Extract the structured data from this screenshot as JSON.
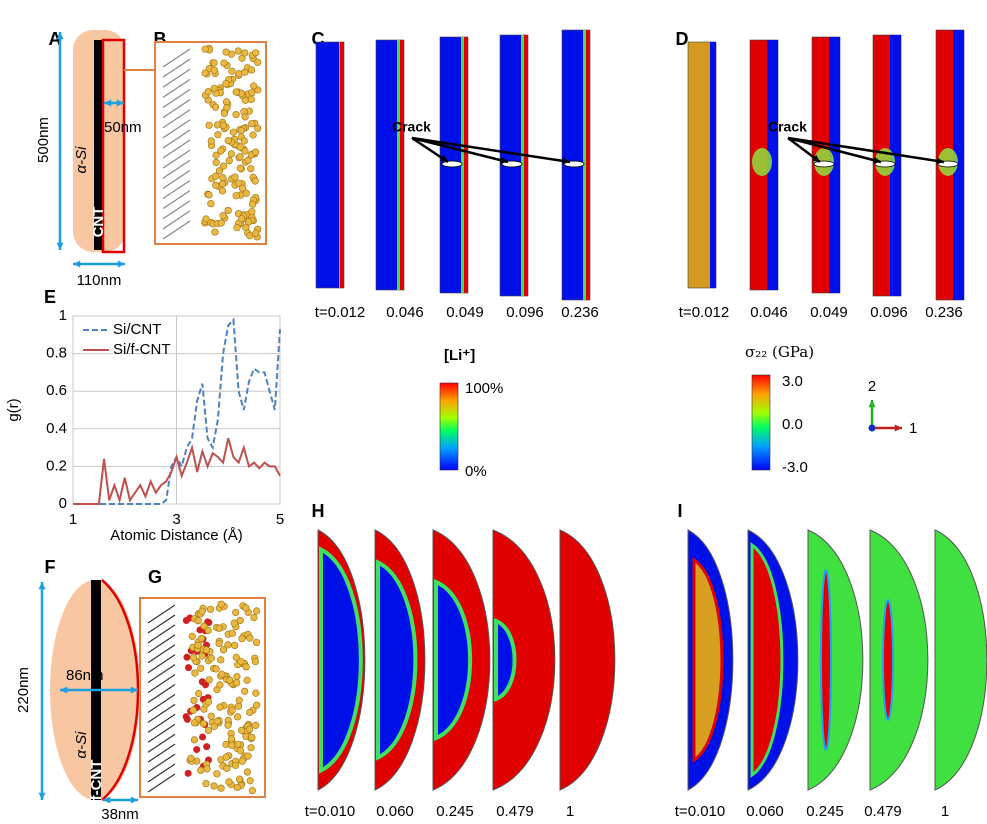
{
  "panel_labels": [
    "A",
    "B",
    "C",
    "D",
    "E",
    "F",
    "G",
    "H",
    "I"
  ],
  "panel_a": {
    "length": "500nm",
    "shell_width": "50nm",
    "shell": "α-Si",
    "core": "CNT",
    "diameter": "110nm"
  },
  "panel_c": {
    "annotation": "Crack",
    "times": [
      "t=0.012",
      "0.046",
      "0.049",
      "0.096",
      "0.236"
    ]
  },
  "panel_d": {
    "annotation": "Crack",
    "times": [
      "t=0.012",
      "0.046",
      "0.049",
      "0.096",
      "0.236"
    ]
  },
  "colorbar_concentration": {
    "title": "[Li⁺]",
    "max": "100%",
    "min": "0%"
  },
  "colorbar_stress": {
    "title": "σ₂₂ (GPa)",
    "ticks": [
      "3.0",
      "0.0",
      "-3.0"
    ]
  },
  "axes_triad": {
    "vertical": "2",
    "horizontal": "1"
  },
  "panel_f": {
    "length": "220nm",
    "radius": "86nm",
    "shell": "α-Si",
    "core": "f-CNT",
    "thickness": "38nm"
  },
  "panel_h": {
    "times": [
      "t=0.010",
      "0.060",
      "0.245",
      "0.479",
      "1"
    ]
  },
  "panel_i": {
    "times": [
      "t=0.010",
      "0.060",
      "0.245",
      "0.479",
      "1"
    ]
  },
  "chart_data": {
    "type": "line",
    "xlabel": "Atomic Distance (Å)",
    "ylabel": "g(r)",
    "x": [
      1.0,
      1.1,
      1.2,
      1.3,
      1.4,
      1.5,
      1.6,
      1.7,
      1.8,
      1.9,
      2.0,
      2.1,
      2.2,
      2.3,
      2.4,
      2.5,
      2.6,
      2.7,
      2.8,
      2.9,
      3.0,
      3.1,
      3.2,
      3.3,
      3.4,
      3.5,
      3.6,
      3.7,
      3.8,
      3.9,
      4.0,
      4.1,
      4.2,
      4.3,
      4.4,
      4.5,
      4.6,
      4.7,
      4.8,
      4.9,
      5.0
    ],
    "xlim": [
      1,
      5
    ],
    "xticks": [
      1,
      3,
      5
    ],
    "ylim": [
      0,
      1
    ],
    "yticks": [
      0,
      0.2,
      0.4,
      0.6,
      0.8,
      1
    ],
    "grid": true,
    "legend": "upper left",
    "series": [
      {
        "name": "Si/CNT",
        "color": "#4f81bd",
        "dash": true,
        "values": [
          0,
          0,
          0,
          0,
          0,
          0,
          0,
          0,
          0,
          0,
          0,
          0,
          0,
          0,
          0,
          0,
          0,
          0,
          0.02,
          0.2,
          0.25,
          0.2,
          0.3,
          0.35,
          0.55,
          0.64,
          0.35,
          0.3,
          0.45,
          0.8,
          0.95,
          0.98,
          0.6,
          0.5,
          0.65,
          0.72,
          0.7,
          0.7,
          0.6,
          0.5,
          0.93
        ]
      },
      {
        "name": "Si/f-CNT",
        "color": "#c0504d",
        "dash": false,
        "values": [
          0,
          0,
          0,
          0,
          0,
          0,
          0.24,
          0.02,
          0.1,
          0.02,
          0.14,
          0.02,
          0.06,
          0.1,
          0.04,
          0.12,
          0.06,
          0.1,
          0.12,
          0.17,
          0.25,
          0.15,
          0.22,
          0.3,
          0.17,
          0.28,
          0.2,
          0.27,
          0.25,
          0.22,
          0.35,
          0.25,
          0.22,
          0.3,
          0.2,
          0.22,
          0.19,
          0.22,
          0.2,
          0.2,
          0.15
        ]
      }
    ]
  }
}
